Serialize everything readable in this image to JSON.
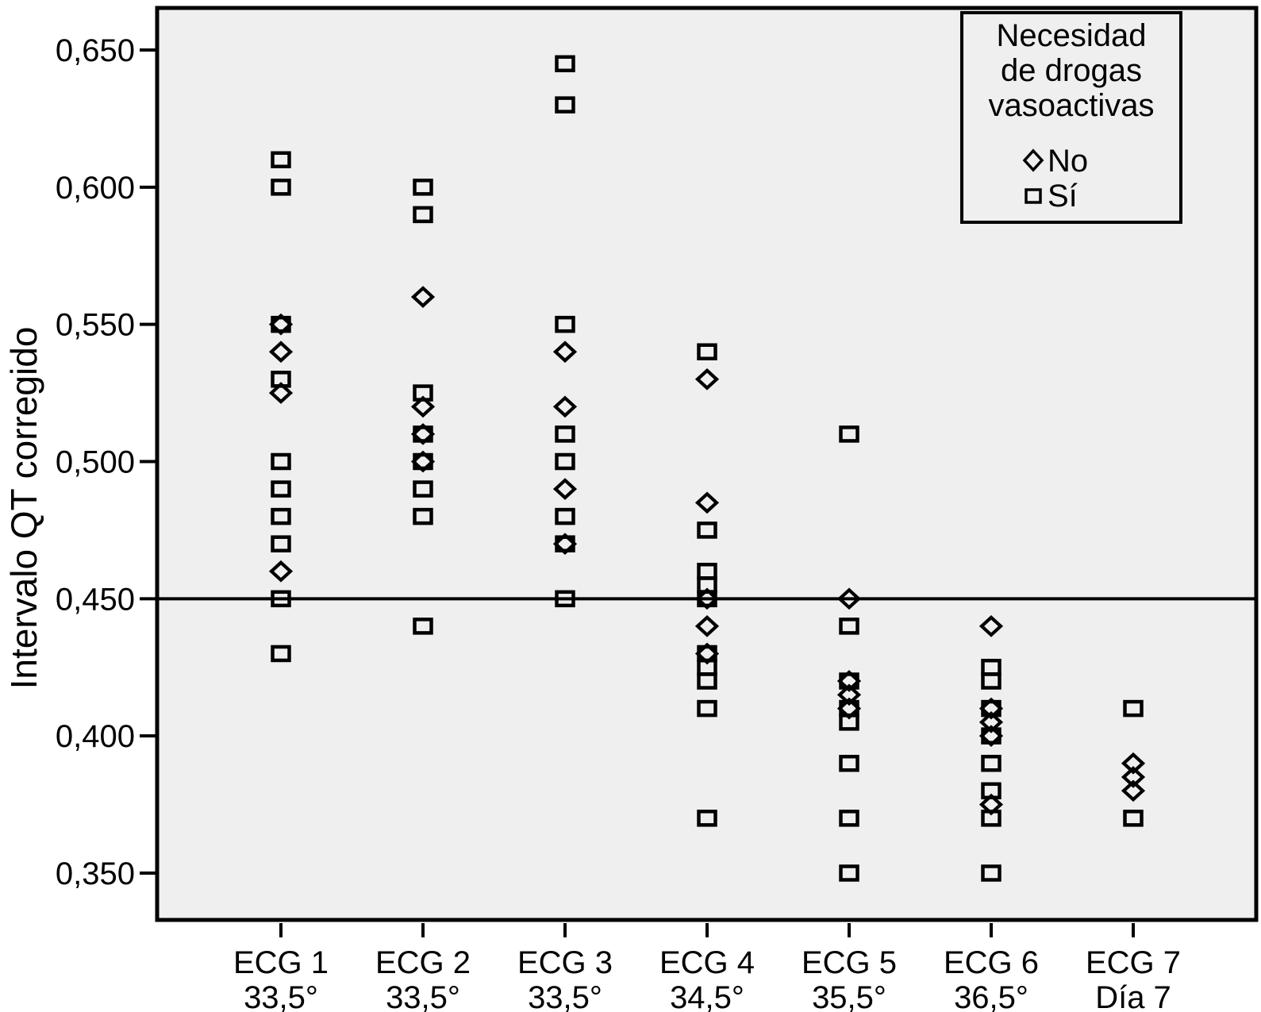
{
  "colors": {
    "page_bg": "#ffffff",
    "plot_bg": "#efefef",
    "line": "#000000",
    "marker": "#000000"
  },
  "y_axis": {
    "title": "Intervalo QT corregido"
  },
  "legend": {
    "title_lines": [
      "Necesidad",
      "de drogas",
      "vasoactivas"
    ],
    "items": [
      {
        "marker": "diamond",
        "label": "No"
      },
      {
        "marker": "square",
        "label": "Sí"
      }
    ]
  },
  "chart_data": {
    "type": "scatter",
    "title": "",
    "xlabel": "",
    "ylabel": "Intervalo QT corregido",
    "ylim": [
      0.33,
      0.67
    ],
    "grid": false,
    "legend_position": "top-right",
    "reference_line_y": 0.45,
    "yticks": [
      {
        "label": "0,650",
        "value": 0.65
      },
      {
        "label": "0,600",
        "value": 0.6
      },
      {
        "label": "0,550",
        "value": 0.55
      },
      {
        "label": "0,500",
        "value": 0.5
      },
      {
        "label": "0,450",
        "value": 0.45
      },
      {
        "label": "0,400",
        "value": 0.4
      },
      {
        "label": "0,350",
        "value": 0.35
      }
    ],
    "categories": [
      {
        "label": "ECG 1",
        "sublabel": "33,5°"
      },
      {
        "label": "ECG 2",
        "sublabel": "33,5°"
      },
      {
        "label": "ECG 3",
        "sublabel": "33,5°"
      },
      {
        "label": "ECG 4",
        "sublabel": "34,5°"
      },
      {
        "label": "ECG 5",
        "sublabel": "35,5°"
      },
      {
        "label": "ECG 6",
        "sublabel": "36,5°"
      },
      {
        "label": "ECG 7",
        "sublabel": "Día 7"
      }
    ],
    "series": [
      {
        "name": "Sí",
        "marker": "square",
        "values_by_category": [
          [
            0.61,
            0.6,
            0.55,
            0.53,
            0.5,
            0.49,
            0.48,
            0.47,
            0.45,
            0.43
          ],
          [
            0.6,
            0.59,
            0.525,
            0.51,
            0.5,
            0.49,
            0.48,
            0.44
          ],
          [
            0.645,
            0.63,
            0.55,
            0.51,
            0.5,
            0.48,
            0.47,
            0.45
          ],
          [
            0.54,
            0.475,
            0.46,
            0.455,
            0.45,
            0.43,
            0.425,
            0.42,
            0.41,
            0.37
          ],
          [
            0.51,
            0.44,
            0.42,
            0.41,
            0.405,
            0.39,
            0.37,
            0.35
          ],
          [
            0.425,
            0.42,
            0.41,
            0.4,
            0.39,
            0.38,
            0.37,
            0.35
          ],
          [
            0.41,
            0.37
          ]
        ]
      },
      {
        "name": "No",
        "marker": "diamond",
        "values_by_category": [
          [
            0.55,
            0.54,
            0.525,
            0.46
          ],
          [
            0.56,
            0.52,
            0.51,
            0.5
          ],
          [
            0.54,
            0.52,
            0.49,
            0.47
          ],
          [
            0.53,
            0.485,
            0.45,
            0.44,
            0.43
          ],
          [
            0.45,
            0.42,
            0.415,
            0.41
          ],
          [
            0.44,
            0.41,
            0.405,
            0.4,
            0.375
          ],
          [
            0.39,
            0.385,
            0.38
          ]
        ]
      }
    ]
  }
}
